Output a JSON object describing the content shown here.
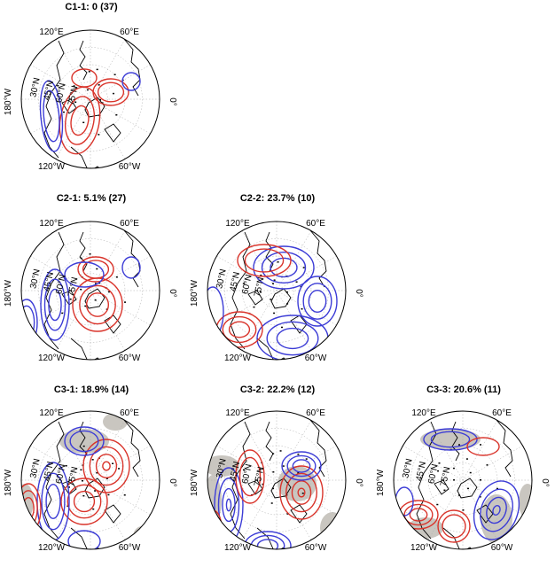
{
  "labels": {
    "lat30": "30°N",
    "lat45": "45°N",
    "lat60": "60°N",
    "lat75": "75°N",
    "lon120E": "120°E",
    "lon60E": "60°E",
    "lon0": "0°",
    "lon180W": "180°W",
    "lon120W": "120°W",
    "lon60W": "60°W"
  },
  "panels": [
    {
      "id": "c1-1",
      "title": "C1-1: 0 (37)",
      "shaded": false
    },
    {
      "id": "c2-1",
      "title": "C2-1: 5.1% (27)",
      "shaded": false
    },
    {
      "id": "c2-2",
      "title": "C2-2: 23.7% (10)",
      "shaded": false
    },
    {
      "id": "c3-1",
      "title": "C3-1: 18.9% (14)",
      "shaded": true
    },
    {
      "id": "c3-2",
      "title": "C3-2: 22.2% (12)",
      "shaded": true
    },
    {
      "id": "c3-3",
      "title": "C3-3: 20.6% (11)",
      "shaded": true
    }
  ],
  "colors": {
    "positive": "#d9342b",
    "negative": "#3c3cd6",
    "shade": "#c9c6c0",
    "coast": "#000000",
    "grid": "#aaaaaa"
  }
}
